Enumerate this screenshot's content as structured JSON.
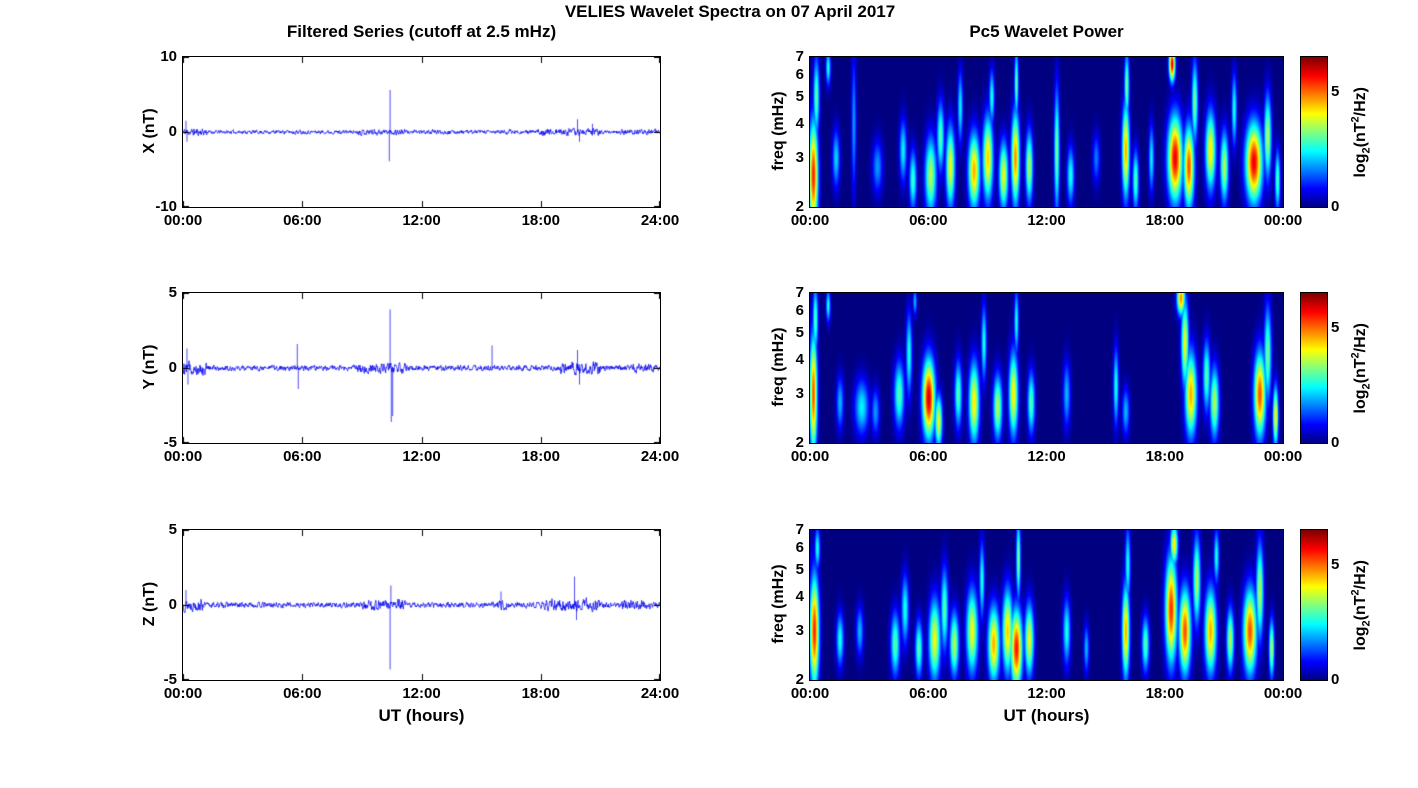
{
  "title": "VELIES Wavelet Spectra on 07 April 2017",
  "chart_data": [
    {
      "type": "line",
      "title": "Filtered Series (cutoff at 2.5 mHz)",
      "xlabel": "UT (hours)",
      "xticks": [
        "00:00",
        "06:00",
        "12:00",
        "18:00",
        "24:00"
      ],
      "x_range_hours": [
        0,
        24
      ],
      "line_color": "#0000ee",
      "panels": [
        {
          "ylabel": "X (nT)",
          "ylim": [
            -10,
            10
          ],
          "yticks": [
            "10",
            "0",
            "-10"
          ],
          "seed": 11,
          "noise_amp": 0.25,
          "bursts": [
            [
              0,
              1.2,
              0.5
            ],
            [
              5.5,
              6.0,
              0.3
            ],
            [
              8.8,
              11.2,
              0.4
            ],
            [
              12.3,
              13.5,
              0.3
            ],
            [
              15.8,
              16.5,
              0.35
            ],
            [
              17.8,
              21.0,
              0.45
            ],
            [
              22.0,
              23.8,
              0.35
            ]
          ],
          "spikes": [
            [
              0.15,
              1.5
            ],
            [
              0.2,
              -1.3
            ],
            [
              10.42,
              5.6
            ],
            [
              10.38,
              -3.9
            ],
            [
              19.85,
              1.7
            ],
            [
              19.95,
              -1.3
            ],
            [
              20.6,
              1.1
            ]
          ]
        },
        {
          "ylabel": "Y (nT)",
          "ylim": [
            -5,
            5
          ],
          "yticks": [
            "5",
            "0",
            "-5"
          ],
          "seed": 12,
          "noise_amp": 0.18,
          "bursts": [
            [
              0,
              1.2,
              0.45
            ],
            [
              8.8,
              11.2,
              0.35
            ],
            [
              19.0,
              21.0,
              0.4
            ],
            [
              22.5,
              23.8,
              0.3
            ]
          ],
          "spikes": [
            [
              0.2,
              1.3
            ],
            [
              0.25,
              -1.1
            ],
            [
              5.75,
              1.6
            ],
            [
              5.8,
              -1.4
            ],
            [
              10.42,
              3.9
            ],
            [
              10.48,
              -3.6
            ],
            [
              10.55,
              -3.2
            ],
            [
              15.55,
              1.5
            ],
            [
              19.85,
              1.2
            ],
            [
              19.95,
              -1.1
            ]
          ]
        },
        {
          "ylabel": "Z (nT)",
          "ylim": [
            -5,
            5
          ],
          "yticks": [
            "5",
            "0",
            "-5"
          ],
          "seed": 13,
          "noise_amp": 0.18,
          "bursts": [
            [
              0,
              1.0,
              0.4
            ],
            [
              9.0,
              11.2,
              0.35
            ],
            [
              15.8,
              16.3,
              0.3
            ],
            [
              18.0,
              21.0,
              0.4
            ],
            [
              22.0,
              23.5,
              0.3
            ]
          ],
          "spikes": [
            [
              0.15,
              1.0
            ],
            [
              10.42,
              -4.3
            ],
            [
              10.46,
              1.3
            ],
            [
              16.0,
              0.9
            ],
            [
              19.7,
              1.9
            ],
            [
              19.8,
              -1.0
            ]
          ]
        }
      ]
    },
    {
      "type": "heatmap",
      "title": "Pc5 Wavelet Power",
      "xlabel": "UT (hours)",
      "xticks": [
        "00:00",
        "06:00",
        "12:00",
        "18:00",
        "00:00"
      ],
      "x_range_hours": [
        0,
        24
      ],
      "ylabel": "freq (mHz)",
      "freq_range_mHz": [
        2,
        7
      ],
      "freq_scale": "log",
      "yticks": [
        "7",
        "6",
        "5",
        "4",
        "3",
        "2"
      ],
      "colorbar": {
        "range": [
          0,
          6.5
        ],
        "colormap": "jet",
        "ticks": [
          {
            "value": 5,
            "label": "5"
          },
          {
            "value": 0,
            "label": "0"
          }
        ],
        "label_parts": {
          "base": "log",
          "sub": "2",
          "mid": "(nT",
          "sup": "2",
          "tail": "/Hz)"
        }
      },
      "panels": [
        {
          "component": "X",
          "blobs": [
            [
              0.15,
              2.6,
              5.5,
              0.22,
              1.1
            ],
            [
              0.3,
              5.0,
              3.0,
              0.15,
              1.6
            ],
            [
              0.9,
              6.4,
              2.6,
              0.12,
              0.9
            ],
            [
              1.3,
              3.0,
              2.2,
              0.18,
              0.7
            ],
            [
              2.2,
              4.0,
              1.8,
              0.12,
              2.2
            ],
            [
              3.4,
              2.8,
              1.8,
              0.25,
              0.6
            ],
            [
              4.7,
              3.2,
              2.4,
              0.18,
              0.8
            ],
            [
              5.2,
              2.5,
              2.8,
              0.18,
              0.6
            ],
            [
              6.1,
              2.6,
              3.6,
              0.28,
              0.8
            ],
            [
              6.6,
              3.6,
              3.0,
              0.18,
              1.0
            ],
            [
              7.1,
              2.8,
              4.0,
              0.22,
              0.9
            ],
            [
              7.6,
              4.6,
              2.4,
              0.13,
              1.3
            ],
            [
              8.3,
              2.7,
              4.6,
              0.28,
              0.8
            ],
            [
              9.0,
              3.0,
              4.4,
              0.25,
              1.0
            ],
            [
              9.2,
              5.0,
              2.6,
              0.13,
              1.1
            ],
            [
              9.8,
              2.6,
              4.0,
              0.22,
              0.7
            ],
            [
              10.4,
              3.0,
              4.8,
              0.2,
              1.1
            ],
            [
              10.45,
              5.6,
              3.0,
              0.1,
              1.6
            ],
            [
              11.1,
              2.8,
              3.6,
              0.18,
              0.8
            ],
            [
              12.5,
              3.2,
              3.2,
              0.13,
              1.6
            ],
            [
              13.2,
              2.6,
              2.6,
              0.18,
              0.6
            ],
            [
              14.5,
              3.0,
              1.6,
              0.18,
              0.6
            ],
            [
              16.0,
              3.2,
              4.6,
              0.18,
              1.2
            ],
            [
              16.05,
              5.5,
              3.2,
              0.12,
              1.5
            ],
            [
              16.5,
              2.5,
              3.0,
              0.15,
              0.6
            ],
            [
              17.3,
              3.0,
              2.4,
              0.13,
              0.8
            ],
            [
              18.35,
              6.6,
              5.8,
              0.15,
              0.9
            ],
            [
              18.5,
              3.0,
              5.8,
              0.35,
              1.0
            ],
            [
              19.2,
              2.8,
              5.2,
              0.25,
              0.9
            ],
            [
              19.5,
              4.8,
              3.2,
              0.15,
              1.6
            ],
            [
              20.3,
              3.2,
              4.2,
              0.25,
              1.0
            ],
            [
              21.0,
              2.8,
              3.6,
              0.2,
              0.8
            ],
            [
              21.5,
              4.5,
              2.6,
              0.13,
              1.3
            ],
            [
              22.5,
              2.9,
              5.8,
              0.4,
              0.9
            ],
            [
              23.2,
              3.6,
              3.6,
              0.18,
              1.2
            ],
            [
              23.7,
              2.5,
              3.0,
              0.13,
              0.6
            ]
          ]
        },
        {
          "component": "Y",
          "blobs": [
            [
              0.15,
              3.0,
              5.2,
              0.18,
              1.4
            ],
            [
              0.25,
              5.6,
              3.0,
              0.13,
              1.5
            ],
            [
              0.9,
              6.3,
              2.6,
              0.11,
              0.8
            ],
            [
              1.5,
              2.8,
              2.0,
              0.18,
              0.6
            ],
            [
              2.6,
              2.7,
              2.4,
              0.35,
              0.6
            ],
            [
              3.3,
              2.6,
              1.8,
              0.2,
              0.5
            ],
            [
              4.5,
              3.0,
              3.0,
              0.25,
              0.8
            ],
            [
              5.0,
              4.2,
              2.6,
              0.15,
              1.4
            ],
            [
              5.3,
              6.5,
              2.0,
              0.1,
              0.7
            ],
            [
              6.0,
              2.9,
              6.0,
              0.3,
              0.9
            ],
            [
              6.5,
              2.4,
              4.0,
              0.18,
              0.5
            ],
            [
              7.5,
              3.0,
              3.0,
              0.18,
              0.8
            ],
            [
              8.3,
              2.8,
              4.2,
              0.25,
              0.9
            ],
            [
              8.8,
              4.6,
              2.6,
              0.13,
              1.4
            ],
            [
              9.5,
              2.7,
              3.6,
              0.22,
              0.7
            ],
            [
              10.3,
              3.0,
              4.2,
              0.22,
              1.0
            ],
            [
              10.45,
              5.5,
              2.6,
              0.11,
              1.4
            ],
            [
              11.2,
              2.8,
              3.0,
              0.18,
              0.7
            ],
            [
              13.0,
              3.0,
              2.0,
              0.18,
              0.8
            ],
            [
              15.5,
              3.2,
              2.6,
              0.13,
              1.0
            ],
            [
              16.0,
              2.6,
              2.0,
              0.18,
              0.5
            ],
            [
              18.8,
              6.7,
              4.8,
              0.2,
              0.9
            ],
            [
              19.0,
              4.6,
              4.0,
              0.18,
              1.6
            ],
            [
              19.3,
              3.0,
              4.6,
              0.28,
              1.0
            ],
            [
              20.1,
              3.5,
              3.0,
              0.18,
              1.0
            ],
            [
              20.5,
              2.8,
              3.6,
              0.22,
              0.8
            ],
            [
              22.8,
              3.0,
              5.2,
              0.28,
              1.0
            ],
            [
              23.2,
              4.2,
              3.2,
              0.18,
              1.6
            ],
            [
              23.6,
              2.5,
              4.2,
              0.13,
              0.6
            ]
          ]
        },
        {
          "component": "Z",
          "blobs": [
            [
              0.2,
              3.0,
              5.5,
              0.22,
              1.3
            ],
            [
              0.35,
              6.0,
              2.6,
              0.13,
              1.0
            ],
            [
              1.5,
              2.8,
              2.6,
              0.18,
              0.6
            ],
            [
              2.5,
              3.0,
              2.0,
              0.18,
              0.6
            ],
            [
              4.3,
              2.7,
              3.0,
              0.22,
              0.7
            ],
            [
              4.8,
              3.6,
              2.6,
              0.18,
              1.0
            ],
            [
              5.5,
              2.6,
              3.0,
              0.18,
              0.6
            ],
            [
              6.3,
              2.8,
              4.0,
              0.28,
              0.9
            ],
            [
              6.8,
              3.6,
              3.0,
              0.18,
              1.2
            ],
            [
              7.3,
              2.7,
              3.6,
              0.22,
              0.7
            ],
            [
              8.2,
              3.0,
              4.0,
              0.28,
              1.0
            ],
            [
              8.7,
              4.6,
              2.6,
              0.13,
              1.4
            ],
            [
              9.3,
              2.7,
              4.6,
              0.28,
              0.8
            ],
            [
              10.0,
              3.0,
              4.4,
              0.25,
              1.0
            ],
            [
              10.45,
              2.6,
              5.6,
              0.28,
              0.8
            ],
            [
              10.55,
              5.5,
              3.2,
              0.11,
              1.8
            ],
            [
              11.1,
              2.8,
              4.0,
              0.22,
              0.8
            ],
            [
              13.0,
              3.0,
              2.6,
              0.18,
              0.8
            ],
            [
              14.0,
              2.6,
              2.0,
              0.13,
              0.5
            ],
            [
              16.0,
              3.0,
              4.6,
              0.18,
              1.1
            ],
            [
              16.1,
              5.2,
              2.6,
              0.13,
              1.6
            ],
            [
              17.0,
              2.7,
              3.0,
              0.18,
              0.6
            ],
            [
              18.3,
              3.6,
              5.4,
              0.28,
              1.5
            ],
            [
              18.45,
              6.2,
              4.2,
              0.18,
              1.0
            ],
            [
              19.0,
              3.0,
              5.2,
              0.28,
              1.0
            ],
            [
              19.6,
              4.6,
              3.6,
              0.18,
              1.6
            ],
            [
              20.3,
              3.0,
              4.6,
              0.28,
              1.0
            ],
            [
              20.6,
              5.6,
              2.6,
              0.13,
              1.2
            ],
            [
              21.3,
              2.8,
              3.6,
              0.18,
              0.7
            ],
            [
              22.3,
              3.0,
              5.2,
              0.32,
              1.0
            ],
            [
              22.8,
              4.2,
              3.6,
              0.18,
              1.6
            ],
            [
              23.4,
              2.6,
              3.6,
              0.13,
              0.6
            ]
          ]
        }
      ]
    }
  ]
}
